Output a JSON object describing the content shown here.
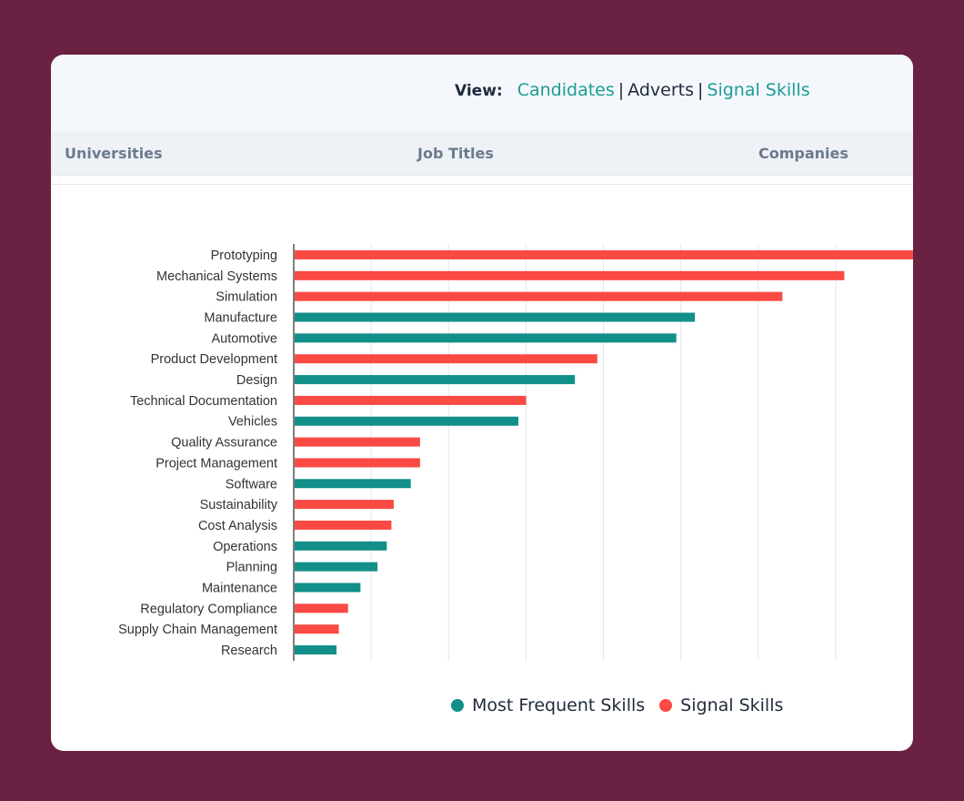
{
  "view": {
    "label": "View:",
    "options": [
      "Candidates",
      "Adverts",
      "Signal Skills"
    ],
    "separator": "|"
  },
  "tabs": [
    "Universities",
    "Job Titles",
    "Companies"
  ],
  "colors": {
    "frequent": "#138f8a",
    "signal": "#fb4a43"
  },
  "legend": {
    "frequent": "Most Frequent Skills",
    "signal": "Signal Skills"
  },
  "chart_data": {
    "type": "bar",
    "orientation": "horizontal",
    "grid": true,
    "legend_position": "bottom",
    "xlim": [
      0,
      80
    ],
    "categories": [
      "Prototyping",
      "Mechanical Systems",
      "Simulation",
      "Manufacture",
      "Automotive",
      "Product Development",
      "Design",
      "Technical Documentation",
      "Vehicles",
      "Quality Assurance",
      "Project Management",
      "Software",
      "Sustainability",
      "Cost Analysis",
      "Operations",
      "Planning",
      "Maintenance",
      "Regulatory Compliance",
      "Supply Chain Management",
      "Research"
    ],
    "values": [
      80,
      71,
      63,
      51.7,
      49.3,
      39.1,
      36.2,
      29.9,
      28.9,
      16.2,
      16.2,
      15.0,
      12.8,
      12.5,
      11.9,
      10.7,
      8.5,
      6.9,
      5.7,
      5.4
    ],
    "groups": [
      "Signal Skills",
      "Signal Skills",
      "Signal Skills",
      "Most Frequent Skills",
      "Most Frequent Skills",
      "Signal Skills",
      "Most Frequent Skills",
      "Signal Skills",
      "Most Frequent Skills",
      "Signal Skills",
      "Signal Skills",
      "Most Frequent Skills",
      "Signal Skills",
      "Signal Skills",
      "Most Frequent Skills",
      "Most Frequent Skills",
      "Most Frequent Skills",
      "Signal Skills",
      "Signal Skills",
      "Most Frequent Skills"
    ]
  }
}
